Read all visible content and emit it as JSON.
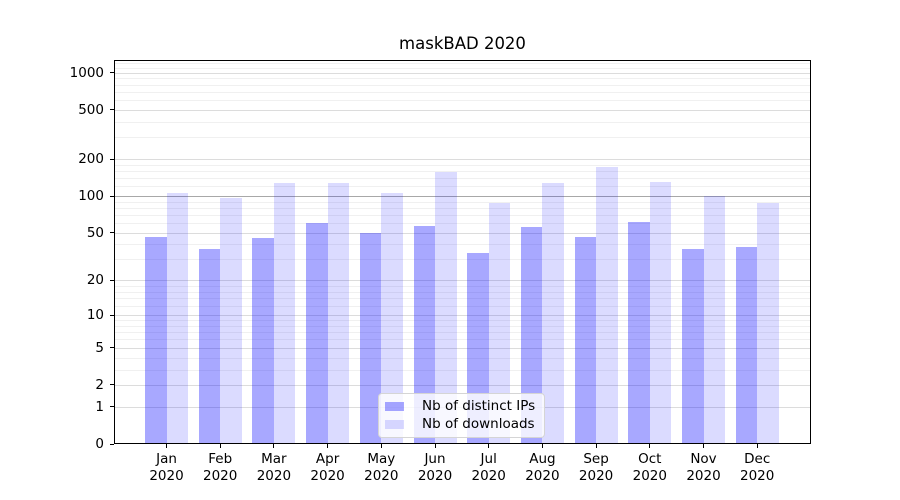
{
  "chart_data": {
    "type": "bar",
    "title": "maskBAD 2020",
    "categories": [
      "Jan",
      "Feb",
      "Mar",
      "Apr",
      "May",
      "Jun",
      "Jul",
      "Aug",
      "Sep",
      "Oct",
      "Nov",
      "Dec"
    ],
    "category_year": "2020",
    "series": [
      {
        "name": "Nb of distinct IPs",
        "color": "rgba(0,0,255,0.34)",
        "values": [
          46,
          37,
          45,
          60,
          50,
          57,
          34,
          56,
          46,
          61,
          37,
          38
        ]
      },
      {
        "name": "Nb of downloads",
        "color": "rgba(0,0,255,0.14)",
        "values": [
          106,
          97,
          128,
          128,
          106,
          157,
          88,
          128,
          173,
          130,
          100,
          88
        ]
      }
    ],
    "y_axis": {
      "scale": "symlog (y proportional to ln(1+v))",
      "tick_labels": [
        "0",
        "1",
        "2",
        "5",
        "10",
        "20",
        "50",
        "100",
        "200",
        "500",
        "1000"
      ],
      "tick_values": [
        0,
        1,
        2,
        5,
        10,
        20,
        50,
        100,
        200,
        500,
        1000
      ],
      "minor_tick_values": [
        3,
        4,
        6,
        7,
        8,
        9,
        12,
        14,
        16,
        18,
        30,
        40,
        60,
        70,
        80,
        90,
        120,
        140,
        160,
        180,
        300,
        400,
        600,
        700,
        800,
        900,
        1100,
        1200
      ],
      "emphasis_value": 100,
      "top_value": 1272
    },
    "legend": {
      "position": "lower center"
    },
    "grid": "on",
    "colors": {
      "grid_major": "#dcdcdc",
      "grid_minor": "#f0f0f0",
      "grid_emphasis": "#a8a8a8",
      "axis": "#000000",
      "background": "#ffffff"
    }
  }
}
